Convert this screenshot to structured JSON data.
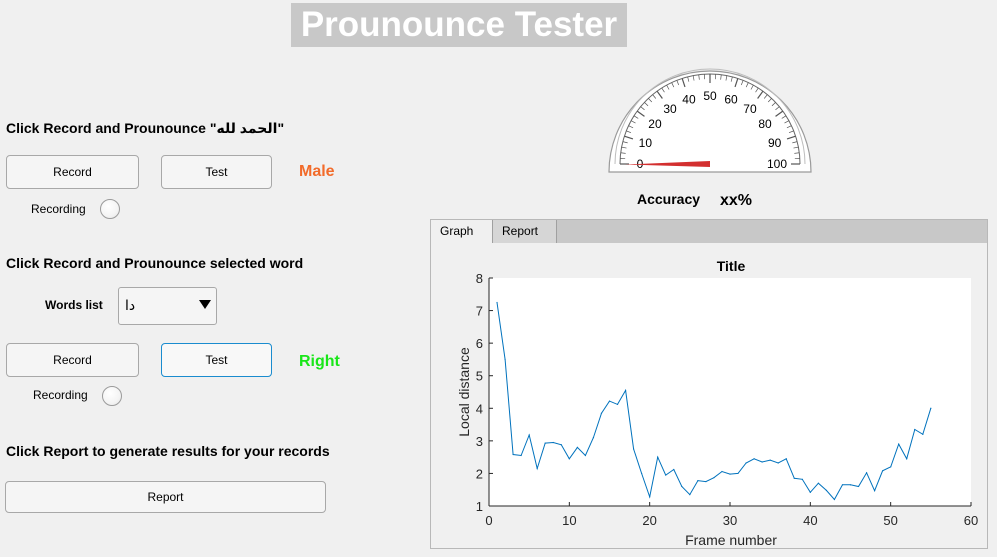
{
  "app_title": "Prounounce Tester",
  "section1": {
    "instruction": "Click Record and Prounounce \"الحمد لله\"",
    "record_label": "Record",
    "test_label": "Test",
    "recording_label": "Recording",
    "gender_result": "Male"
  },
  "section2": {
    "instruction": "Click Record and Prounounce selected word",
    "words_list_label": "Words list",
    "selected_word": "دا",
    "record_label": "Record",
    "test_label": "Test",
    "recording_label": "Recording",
    "pronunciation_result": "Right"
  },
  "section3": {
    "instruction": "Click Report to generate results for your records",
    "report_label": "Report"
  },
  "gauge": {
    "min": 0,
    "max": 100,
    "major_ticks": [
      0,
      10,
      20,
      30,
      40,
      50,
      60,
      70,
      80,
      90,
      100
    ],
    "value": 0
  },
  "accuracy": {
    "label": "Accuracy",
    "value": "xx%"
  },
  "tabs": [
    {
      "label": "Graph",
      "active": true
    },
    {
      "label": "Report",
      "active": false
    }
  ],
  "chart_data": {
    "type": "line",
    "title": "Title",
    "xlabel": "Frame number",
    "ylabel": "Local distance",
    "xlim": [
      0,
      60
    ],
    "ylim": [
      1,
      8
    ],
    "xticks": [
      0,
      10,
      20,
      30,
      40,
      50,
      60
    ],
    "yticks": [
      1,
      2,
      3,
      4,
      5,
      6,
      7,
      8
    ],
    "grid": false,
    "line_color": "#0072bd",
    "x": [
      1,
      2,
      3,
      4,
      5,
      6,
      7,
      8,
      9,
      10,
      11,
      12,
      13,
      14,
      15,
      16,
      17,
      18,
      19,
      20,
      21,
      22,
      23,
      24,
      25,
      26,
      27,
      28,
      29,
      30,
      31,
      32,
      33,
      34,
      35,
      36,
      37,
      38,
      39,
      40,
      41,
      42,
      43,
      44,
      45,
      46,
      47,
      48,
      49,
      50,
      51,
      52,
      53,
      54,
      55
    ],
    "y": [
      7.25,
      5.5,
      2.58,
      2.55,
      3.18,
      2.15,
      2.93,
      2.95,
      2.88,
      2.45,
      2.8,
      2.55,
      3.1,
      3.85,
      4.22,
      4.12,
      4.55,
      2.75,
      2.0,
      1.28,
      2.5,
      1.95,
      2.12,
      1.6,
      1.35,
      1.78,
      1.75,
      1.87,
      2.06,
      1.98,
      2.0,
      2.32,
      2.45,
      2.35,
      2.41,
      2.32,
      2.45,
      1.85,
      1.82,
      1.42,
      1.7,
      1.48,
      1.2,
      1.65,
      1.65,
      1.6,
      2.02,
      1.47,
      2.08,
      2.2,
      2.9,
      2.45,
      3.35,
      3.2,
      4.0
    ]
  }
}
